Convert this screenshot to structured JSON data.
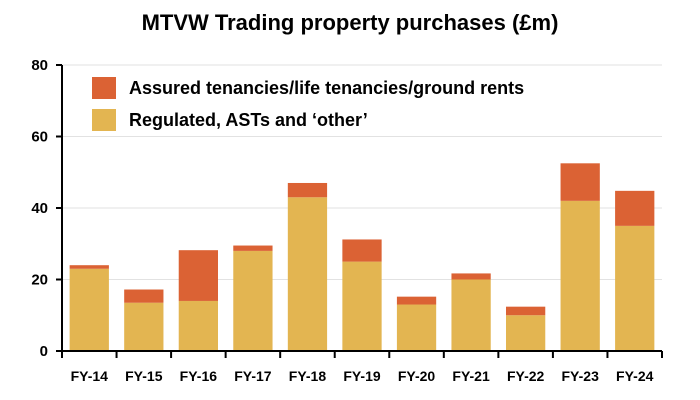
{
  "chart_data": {
    "type": "bar",
    "stacked": true,
    "title": "MTVW Trading property purchases (£m)",
    "categories": [
      "FY-14",
      "FY-15",
      "FY-16",
      "FY-17",
      "FY-18",
      "FY-19",
      "FY-20",
      "FY-21",
      "FY-22",
      "FY-23",
      "FY-24"
    ],
    "series": [
      {
        "name": "Regulated, ASTs and ‘other’",
        "color": "#E3B551",
        "values": [
          23,
          13.5,
          14,
          28,
          43,
          25,
          13,
          20,
          10,
          42,
          35
        ]
      },
      {
        "name": "Assured tenancies/life tenancies/ground rents",
        "color": "#DB6234",
        "values": [
          1,
          3.7,
          14.2,
          1.5,
          4,
          6.2,
          2.2,
          1.7,
          2.4,
          10.5,
          9.8
        ]
      }
    ],
    "ylim": [
      0,
      80
    ],
    "yticks": [
      0,
      20,
      40,
      60,
      80
    ],
    "grid": true,
    "legend": "top-left",
    "legend_order": [
      1,
      0
    ]
  }
}
